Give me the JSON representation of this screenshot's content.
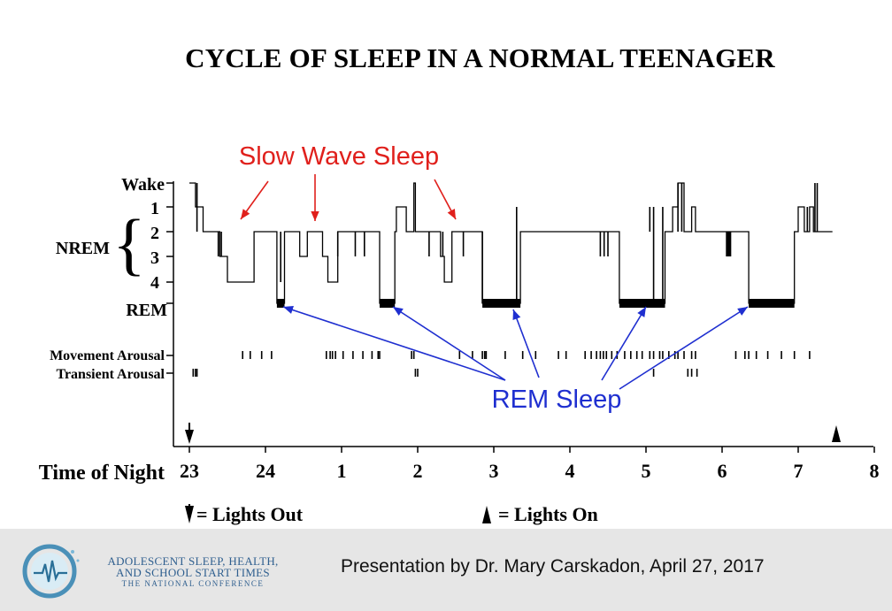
{
  "title": "CYCLE OF SLEEP IN A NORMAL TEENAGER",
  "chart_data": {
    "type": "line",
    "stage_labels": {
      "wake": "Wake",
      "s1": "1",
      "s2": "2",
      "s3": "3",
      "s4": "4",
      "rem": "REM",
      "nrem": "NREM"
    },
    "x_axis_label": "Time of Night",
    "x_ticks": [
      "23",
      "24",
      "1",
      "2",
      "3",
      "4",
      "5",
      "6",
      "7",
      "8"
    ],
    "x_range": [
      23,
      32
    ],
    "row_labels": {
      "movement": "Movement Arousal",
      "transient": "Transient Arousal"
    },
    "hypnogram": [
      [
        23.0,
        0
      ],
      [
        23.08,
        0
      ],
      [
        23.08,
        1
      ],
      [
        23.18,
        1
      ],
      [
        23.18,
        2
      ],
      [
        23.4,
        2
      ],
      [
        23.4,
        3
      ],
      [
        23.5,
        3
      ],
      [
        23.5,
        4
      ],
      [
        23.85,
        4
      ],
      [
        23.85,
        2
      ],
      [
        24.15,
        2
      ],
      [
        24.15,
        5
      ],
      [
        24.25,
        5
      ],
      [
        24.25,
        2
      ],
      [
        24.45,
        2
      ],
      [
        24.45,
        3
      ],
      [
        24.55,
        3
      ],
      [
        24.55,
        2
      ],
      [
        24.75,
        2
      ],
      [
        24.75,
        3
      ],
      [
        24.82,
        3
      ],
      [
        24.82,
        4
      ],
      [
        24.95,
        4
      ],
      [
        24.95,
        2
      ],
      [
        25.5,
        2
      ],
      [
        25.5,
        5
      ],
      [
        25.7,
        5
      ],
      [
        25.7,
        2
      ],
      [
        25.72,
        2
      ],
      [
        25.72,
        1
      ],
      [
        25.85,
        1
      ],
      [
        25.85,
        2
      ],
      [
        25.95,
        2
      ],
      [
        25.95,
        0
      ],
      [
        25.97,
        0
      ],
      [
        25.97,
        2
      ],
      [
        26.3,
        2
      ],
      [
        26.3,
        3
      ],
      [
        26.35,
        3
      ],
      [
        26.35,
        4
      ],
      [
        26.45,
        4
      ],
      [
        26.45,
        2
      ],
      [
        26.85,
        2
      ],
      [
        26.85,
        5
      ],
      [
        27.35,
        5
      ],
      [
        27.35,
        2
      ],
      [
        28.65,
        2
      ],
      [
        28.65,
        5
      ],
      [
        29.25,
        5
      ],
      [
        29.25,
        2
      ],
      [
        29.35,
        2
      ],
      [
        29.35,
        1
      ],
      [
        29.42,
        1
      ],
      [
        29.42,
        0
      ],
      [
        29.5,
        0
      ],
      [
        29.5,
        2
      ],
      [
        29.6,
        2
      ],
      [
        29.6,
        1
      ],
      [
        29.65,
        1
      ],
      [
        29.65,
        2
      ],
      [
        30.35,
        2
      ],
      [
        30.35,
        5
      ],
      [
        30.95,
        5
      ],
      [
        30.95,
        2
      ],
      [
        31.0,
        2
      ],
      [
        31.0,
        1
      ],
      [
        31.08,
        1
      ],
      [
        31.08,
        2
      ],
      [
        31.15,
        2
      ],
      [
        31.15,
        1
      ],
      [
        31.2,
        1
      ],
      [
        31.2,
        2
      ],
      [
        31.45,
        2
      ]
    ],
    "spikes": [
      {
        "x": 23.1,
        "from": 0,
        "to": 2
      },
      {
        "x": 23.38,
        "from": 2,
        "to": 3
      },
      {
        "x": 23.42,
        "from": 2,
        "to": 3
      },
      {
        "x": 24.2,
        "from": 2,
        "to": 4
      },
      {
        "x": 24.95,
        "from": 2,
        "to": 3
      },
      {
        "x": 25.18,
        "from": 2,
        "to": 3
      },
      {
        "x": 25.3,
        "from": 2,
        "to": 3
      },
      {
        "x": 26.15,
        "from": 2,
        "to": 3
      },
      {
        "x": 26.33,
        "from": 2,
        "to": 3
      },
      {
        "x": 26.6,
        "from": 2,
        "to": 3
      },
      {
        "x": 26.85,
        "from": 2,
        "to": 5
      },
      {
        "x": 27.3,
        "from": 1,
        "to": 5
      },
      {
        "x": 28.4,
        "from": 2,
        "to": 3
      },
      {
        "x": 28.45,
        "from": 2,
        "to": 3
      },
      {
        "x": 28.5,
        "from": 2,
        "to": 3
      },
      {
        "x": 29.05,
        "from": 1,
        "to": 2
      },
      {
        "x": 29.1,
        "from": 1,
        "to": 5
      },
      {
        "x": 29.22,
        "from": 1,
        "to": 5
      },
      {
        "x": 29.42,
        "from": 0,
        "to": 2
      },
      {
        "x": 29.47,
        "from": 0,
        "to": 2
      },
      {
        "x": 31.12,
        "from": 1,
        "to": 2
      },
      {
        "x": 31.22,
        "from": 0,
        "to": 2
      },
      {
        "x": 31.25,
        "from": 0,
        "to": 2
      }
    ],
    "blocks": [
      {
        "x0": 30.05,
        "x1": 30.12,
        "from": 2,
        "to": 3
      }
    ],
    "movement_arousals": [
      23.7,
      23.8,
      23.95,
      24.08,
      24.8,
      24.85,
      24.88,
      24.92,
      25.02,
      25.15,
      25.28,
      25.4,
      25.48,
      25.5,
      25.92,
      25.95,
      26.55,
      26.72,
      26.85,
      26.88,
      26.9,
      27.15,
      27.38,
      27.55,
      27.85,
      27.95,
      28.2,
      28.28,
      28.35,
      28.4,
      28.44,
      28.48,
      28.55,
      28.62,
      28.72,
      28.8,
      28.88,
      28.95,
      29.05,
      29.1,
      29.18,
      29.22,
      29.3,
      29.38,
      29.42,
      29.5,
      29.6,
      29.65,
      30.18,
      30.3,
      30.35,
      30.45,
      30.6,
      30.78,
      30.95,
      31.15
    ],
    "transient_arousals": [
      23.05,
      23.08,
      23.1,
      25.97,
      26.0,
      29.1,
      29.55,
      29.6,
      29.67
    ],
    "lights_out_x": 23,
    "lights_on_x": 31.5
  },
  "annotations": {
    "slow_wave": {
      "text": "Slow Wave Sleep",
      "color": "#e0201c"
    },
    "rem": {
      "text": "REM Sleep",
      "color": "#1f2fd0"
    }
  },
  "legend": {
    "lights_out": "= Lights Out",
    "lights_on": "= Lights On"
  },
  "footer": {
    "org_line1": "ADOLESCENT SLEEP, HEALTH,",
    "org_line2": "AND SCHOOL START TIMES",
    "org_line3": "THE NATIONAL CONFERENCE",
    "presenter": "Presentation by Dr. Mary Carskadon, April 27, 2017"
  }
}
